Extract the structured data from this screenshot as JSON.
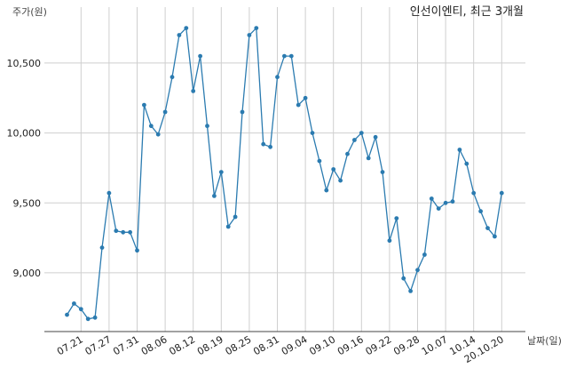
{
  "chart_data": {
    "type": "line",
    "title": "인선이엔티, 최근 3개월",
    "ylabel": "주가(원)",
    "xlabel": "날짜(일)",
    "ylim": [
      8580,
      10900
    ],
    "yticks": [
      9000,
      9500,
      10000,
      10500
    ],
    "ytick_labels": [
      "9,000",
      "9,500",
      "10,000",
      "10,500"
    ],
    "grid": true,
    "color": "#2b7bb0",
    "x_tick_labels": [
      "07.21",
      "07.27",
      "07.31",
      "08.06",
      "08.12",
      "08.19",
      "08.25",
      "08.31",
      "09.04",
      "09.10",
      "09.16",
      "09.22",
      "09.28",
      "10.07",
      "10.14",
      "20.10.20"
    ],
    "x_tick_index": [
      2,
      6,
      10,
      14,
      18,
      22,
      26,
      30,
      34,
      38,
      42,
      46,
      50,
      54,
      58,
      62
    ],
    "series": [
      {
        "values": [
          8700,
          8780,
          8740,
          8670,
          8680,
          9180,
          9570,
          9300,
          9290,
          9290,
          9160,
          10200,
          10050,
          9990,
          10150,
          10400,
          10700,
          10750,
          10300,
          10550,
          10050,
          9550,
          9720,
          9330,
          9400,
          10150,
          10700,
          10750,
          9920,
          9900,
          10400,
          10550,
          10550,
          10200,
          10250,
          10000,
          9800,
          9590,
          9740,
          9660,
          9850,
          9950,
          10000,
          9820,
          9970,
          9720,
          9230,
          9390,
          8960,
          8870,
          9020,
          9130,
          9530,
          9460,
          9500,
          9510,
          9880,
          9780,
          9570,
          9440,
          9320,
          9260,
          9570
        ]
      }
    ]
  }
}
